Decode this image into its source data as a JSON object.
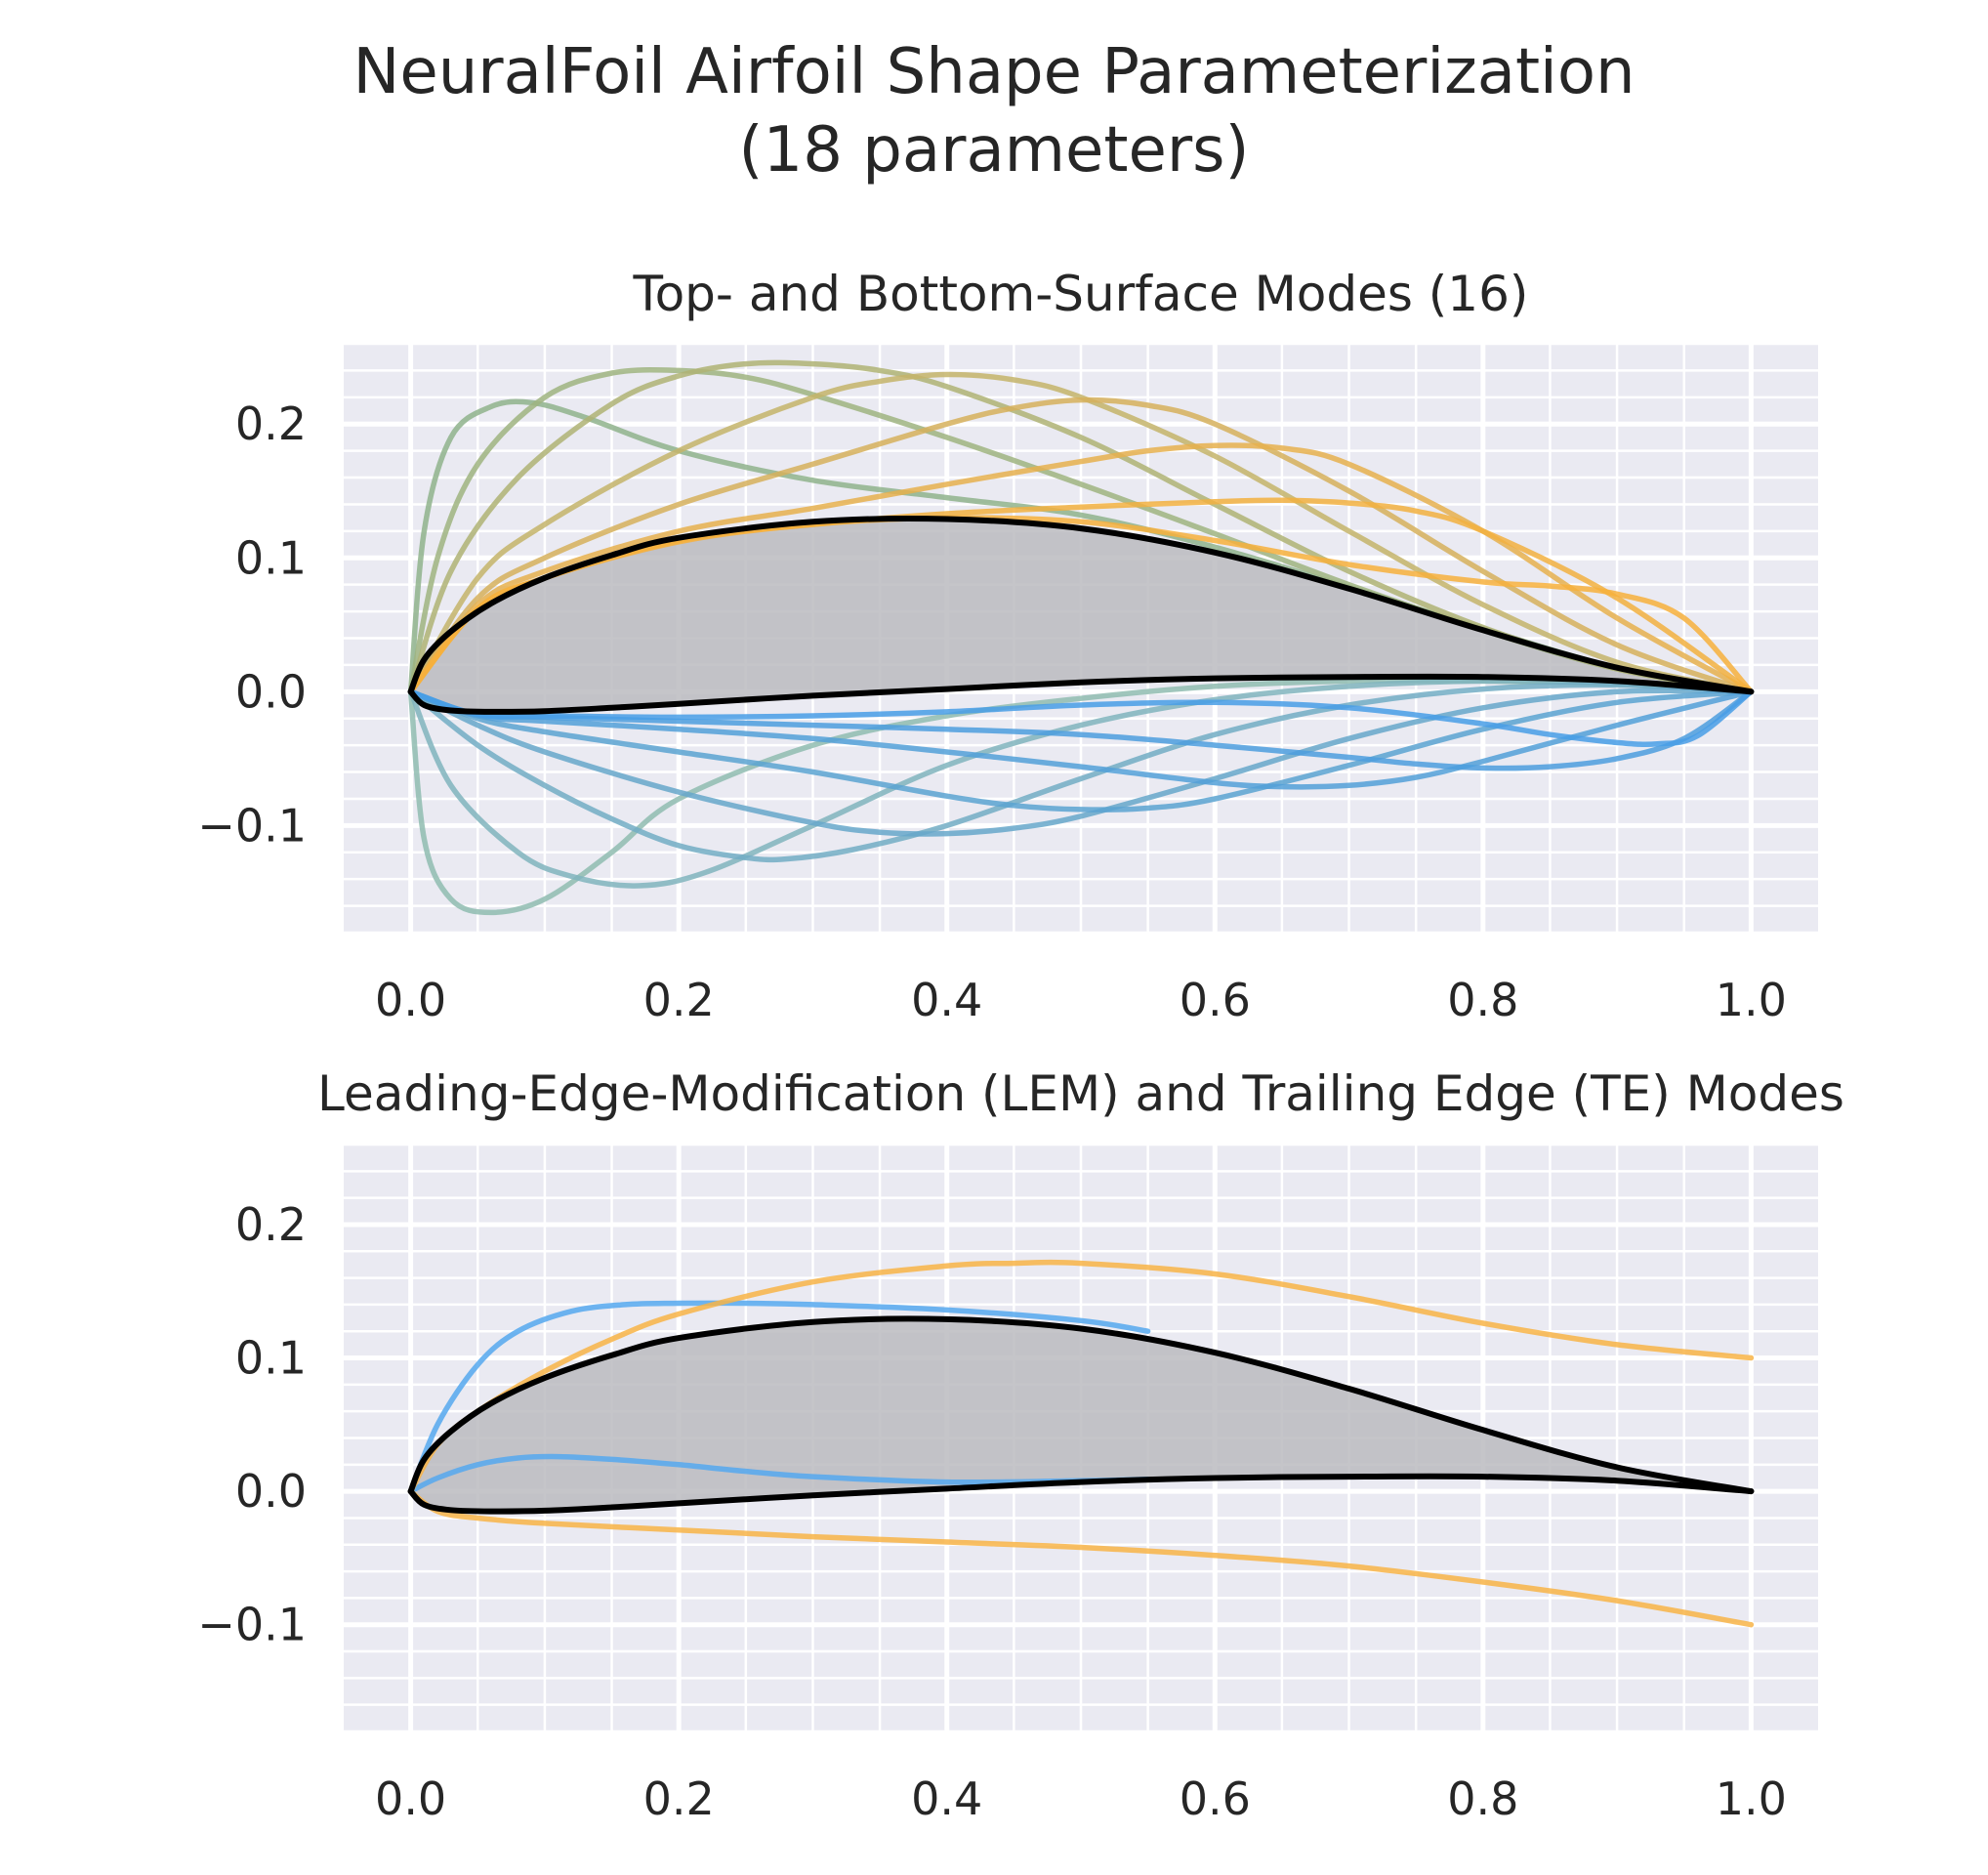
{
  "title_line1": "NeuralFoil Airfoil Shape Parameterization",
  "title_line2": "(18 parameters)",
  "chart_data": [
    {
      "type": "line",
      "title": "Top- and Bottom-Surface Modes (16)",
      "xlim": [
        -0.05,
        1.05
      ],
      "ylim": [
        -0.18,
        0.26
      ],
      "xticks": [
        0.0,
        0.2,
        0.4,
        0.6,
        0.8,
        1.0
      ],
      "xtick_labels": [
        "0.0",
        "0.2",
        "0.4",
        "0.6",
        "0.8",
        "1.0"
      ],
      "yticks": [
        -0.1,
        0.0,
        0.1,
        0.2
      ],
      "ytick_labels": [
        "−0.1",
        "0.0",
        "0.1",
        "0.2"
      ],
      "grid": true,
      "background": "#eaeaf2",
      "baseline_airfoil": {
        "color": "#000000",
        "fill": "#bbbbc0",
        "upper": {
          "x": [
            0,
            0.01,
            0.03,
            0.06,
            0.1,
            0.15,
            0.2,
            0.3,
            0.4,
            0.5,
            0.6,
            0.7,
            0.8,
            0.9,
            1.0
          ],
          "y": [
            0,
            0.024,
            0.045,
            0.066,
            0.085,
            0.102,
            0.115,
            0.127,
            0.129,
            0.122,
            0.104,
            0.077,
            0.046,
            0.018,
            0
          ]
        },
        "lower": {
          "x": [
            0,
            0.01,
            0.03,
            0.06,
            0.1,
            0.15,
            0.2,
            0.3,
            0.4,
            0.5,
            0.6,
            0.7,
            0.8,
            0.9,
            1.0
          ],
          "y": [
            0,
            -0.01,
            -0.014,
            -0.015,
            -0.0145,
            -0.012,
            -0.009,
            -0.003,
            0.002,
            0.007,
            0.01,
            0.011,
            0.011,
            0.008,
            0
          ]
        }
      },
      "series": [
        {
          "color": "#8fb38c",
          "x": [
            0,
            0.01,
            0.03,
            0.06,
            0.09,
            0.13,
            0.2,
            0.3,
            0.4,
            0.5,
            0.6,
            0.7,
            0.8,
            0.9,
            1.0
          ],
          "y": [
            0,
            0.12,
            0.19,
            0.213,
            0.216,
            0.205,
            0.18,
            0.158,
            0.145,
            0.132,
            0.108,
            0.078,
            0.047,
            0.018,
            0
          ]
        },
        {
          "color": "#9fb480",
          "x": [
            0,
            0.02,
            0.05,
            0.1,
            0.15,
            0.2,
            0.25,
            0.3,
            0.4,
            0.5,
            0.6,
            0.7,
            0.8,
            0.9,
            1.0
          ],
          "y": [
            0,
            0.1,
            0.17,
            0.22,
            0.238,
            0.24,
            0.235,
            0.222,
            0.19,
            0.155,
            0.118,
            0.08,
            0.046,
            0.017,
            0
          ]
        },
        {
          "color": "#afb374",
          "x": [
            0,
            0.03,
            0.08,
            0.15,
            0.2,
            0.25,
            0.3,
            0.35,
            0.4,
            0.5,
            0.6,
            0.7,
            0.8,
            0.9,
            1.0
          ],
          "y": [
            0,
            0.09,
            0.16,
            0.215,
            0.236,
            0.245,
            0.245,
            0.24,
            0.228,
            0.19,
            0.14,
            0.09,
            0.048,
            0.017,
            0
          ]
        },
        {
          "color": "#c4b46a",
          "x": [
            0,
            0.05,
            0.1,
            0.2,
            0.3,
            0.35,
            0.4,
            0.45,
            0.5,
            0.6,
            0.7,
            0.8,
            0.9,
            1.0
          ],
          "y": [
            0,
            0.085,
            0.125,
            0.18,
            0.22,
            0.232,
            0.237,
            0.233,
            0.22,
            0.176,
            0.12,
            0.065,
            0.022,
            0
          ]
        },
        {
          "color": "#d6b05c",
          "x": [
            0,
            0.05,
            0.1,
            0.2,
            0.3,
            0.4,
            0.45,
            0.5,
            0.55,
            0.6,
            0.7,
            0.8,
            0.9,
            1.0
          ],
          "y": [
            0,
            0.07,
            0.1,
            0.14,
            0.17,
            0.2,
            0.212,
            0.218,
            0.214,
            0.2,
            0.15,
            0.09,
            0.035,
            0
          ]
        },
        {
          "color": "#e6b04e",
          "x": [
            0,
            0.05,
            0.1,
            0.2,
            0.3,
            0.4,
            0.5,
            0.55,
            0.6,
            0.65,
            0.7,
            0.8,
            0.9,
            1.0
          ],
          "y": [
            0,
            0.065,
            0.09,
            0.12,
            0.137,
            0.155,
            0.172,
            0.18,
            0.184,
            0.182,
            0.17,
            0.12,
            0.055,
            0
          ]
        },
        {
          "color": "#f2b040",
          "x": [
            0,
            0.05,
            0.1,
            0.2,
            0.3,
            0.4,
            0.5,
            0.6,
            0.65,
            0.7,
            0.75,
            0.8,
            0.9,
            1.0
          ],
          "y": [
            0,
            0.062,
            0.085,
            0.113,
            0.125,
            0.133,
            0.138,
            0.142,
            0.143,
            0.141,
            0.135,
            0.12,
            0.07,
            0
          ]
        },
        {
          "color": "#f7b03c",
          "x": [
            0,
            0.05,
            0.1,
            0.2,
            0.3,
            0.4,
            0.5,
            0.6,
            0.7,
            0.8,
            0.85,
            0.9,
            0.95,
            1.0
          ],
          "y": [
            0,
            0.062,
            0.085,
            0.112,
            0.125,
            0.13,
            0.127,
            0.113,
            0.095,
            0.082,
            0.079,
            0.073,
            0.055,
            0
          ]
        },
        {
          "color": "#8fbcb0",
          "x": [
            0,
            0.01,
            0.03,
            0.06,
            0.1,
            0.15,
            0.2,
            0.3,
            0.4,
            0.5,
            0.6,
            0.7,
            0.8,
            0.9,
            1.0
          ],
          "y": [
            0,
            -0.11,
            -0.155,
            -0.165,
            -0.155,
            -0.12,
            -0.08,
            -0.04,
            -0.018,
            -0.005,
            0.004,
            0.008,
            0.008,
            0.006,
            0
          ]
        },
        {
          "color": "#80b4bd",
          "x": [
            0,
            0.03,
            0.08,
            0.12,
            0.17,
            0.22,
            0.3,
            0.4,
            0.5,
            0.6,
            0.7,
            0.8,
            0.9,
            1.0
          ],
          "y": [
            0,
            -0.07,
            -0.12,
            -0.138,
            -0.145,
            -0.135,
            -0.1,
            -0.055,
            -0.025,
            -0.006,
            0.004,
            0.008,
            0.006,
            0
          ]
        },
        {
          "color": "#72adc4",
          "x": [
            0,
            0.05,
            0.1,
            0.15,
            0.2,
            0.25,
            0.28,
            0.33,
            0.4,
            0.5,
            0.6,
            0.7,
            0.8,
            0.9,
            1.0
          ],
          "y": [
            0,
            -0.04,
            -0.07,
            -0.095,
            -0.115,
            -0.124,
            -0.125,
            -0.118,
            -0.1,
            -0.065,
            -0.032,
            -0.01,
            0.002,
            0.005,
            0
          ]
        },
        {
          "color": "#66a7ca",
          "x": [
            0,
            0.05,
            0.1,
            0.2,
            0.3,
            0.35,
            0.4,
            0.45,
            0.5,
            0.6,
            0.7,
            0.8,
            0.9,
            1.0
          ],
          "y": [
            0,
            -0.025,
            -0.045,
            -0.075,
            -0.098,
            -0.105,
            -0.106,
            -0.102,
            -0.093,
            -0.065,
            -0.035,
            -0.012,
            0.0,
            0
          ]
        },
        {
          "color": "#5aa3d1",
          "x": [
            0,
            0.05,
            0.1,
            0.2,
            0.3,
            0.4,
            0.45,
            0.5,
            0.55,
            0.6,
            0.7,
            0.8,
            0.9,
            1.0
          ],
          "y": [
            0,
            -0.02,
            -0.03,
            -0.045,
            -0.06,
            -0.078,
            -0.085,
            -0.088,
            -0.087,
            -0.08,
            -0.055,
            -0.028,
            -0.008,
            0
          ]
        },
        {
          "color": "#52a0d8",
          "x": [
            0,
            0.05,
            0.1,
            0.2,
            0.3,
            0.4,
            0.5,
            0.6,
            0.65,
            0.7,
            0.75,
            0.8,
            0.9,
            1.0
          ],
          "y": [
            0,
            -0.018,
            -0.022,
            -0.028,
            -0.035,
            -0.045,
            -0.056,
            -0.068,
            -0.071,
            -0.07,
            -0.064,
            -0.052,
            -0.025,
            0
          ]
        },
        {
          "color": "#4c9ede",
          "x": [
            0,
            0.05,
            0.1,
            0.2,
            0.3,
            0.4,
            0.5,
            0.6,
            0.7,
            0.75,
            0.8,
            0.85,
            0.9,
            0.95,
            1.0
          ],
          "y": [
            0,
            -0.017,
            -0.019,
            -0.022,
            -0.025,
            -0.028,
            -0.032,
            -0.04,
            -0.049,
            -0.054,
            -0.057,
            -0.056,
            -0.05,
            -0.035,
            0
          ]
        },
        {
          "color": "#489de6",
          "x": [
            0,
            0.05,
            0.1,
            0.2,
            0.3,
            0.4,
            0.5,
            0.6,
            0.7,
            0.8,
            0.85,
            0.9,
            0.93,
            0.96,
            1.0
          ],
          "y": [
            0,
            -0.017,
            -0.018,
            -0.019,
            -0.018,
            -0.015,
            -0.01,
            -0.008,
            -0.012,
            -0.024,
            -0.032,
            -0.038,
            -0.039,
            -0.033,
            0
          ]
        }
      ]
    },
    {
      "type": "line",
      "title": "Leading-Edge-Modification (LEM) and Trailing Edge (TE) Modes",
      "xlim": [
        -0.05,
        1.05
      ],
      "ylim": [
        -0.18,
        0.26
      ],
      "xticks": [
        0.0,
        0.2,
        0.4,
        0.6,
        0.8,
        1.0
      ],
      "xtick_labels": [
        "0.0",
        "0.2",
        "0.4",
        "0.6",
        "0.8",
        "1.0"
      ],
      "yticks": [
        -0.1,
        0.0,
        0.1,
        0.2
      ],
      "ytick_labels": [
        "−0.1",
        "0.0",
        "0.1",
        "0.2"
      ],
      "grid": true,
      "background": "#eaeaf2",
      "baseline_airfoil": {
        "color": "#000000",
        "fill": "#bbbbc0",
        "upper": {
          "x": [
            0,
            0.01,
            0.03,
            0.06,
            0.1,
            0.15,
            0.2,
            0.3,
            0.4,
            0.5,
            0.6,
            0.7,
            0.8,
            0.9,
            1.0
          ],
          "y": [
            0,
            0.024,
            0.045,
            0.066,
            0.085,
            0.102,
            0.115,
            0.127,
            0.129,
            0.122,
            0.104,
            0.077,
            0.046,
            0.018,
            0
          ]
        },
        "lower": {
          "x": [
            0,
            0.01,
            0.03,
            0.06,
            0.1,
            0.15,
            0.2,
            0.3,
            0.4,
            0.5,
            0.6,
            0.7,
            0.8,
            0.9,
            1.0
          ],
          "y": [
            0,
            -0.01,
            -0.014,
            -0.015,
            -0.0145,
            -0.012,
            -0.009,
            -0.003,
            0.002,
            0.007,
            0.01,
            0.011,
            0.011,
            0.008,
            0
          ]
        }
      },
      "series": [
        {
          "color": "#55a8ee",
          "x": [
            0,
            0.02,
            0.05,
            0.08,
            0.12,
            0.16,
            0.2,
            0.25,
            0.3,
            0.4,
            0.5,
            0.55
          ],
          "y": [
            0,
            0.05,
            0.095,
            0.12,
            0.135,
            0.14,
            0.141,
            0.141,
            0.14,
            0.136,
            0.128,
            0.12
          ]
        },
        {
          "color": "#55a8ee",
          "x": [
            0,
            0.02,
            0.05,
            0.08,
            0.11,
            0.15,
            0.2,
            0.25,
            0.3,
            0.4,
            0.5,
            0.55
          ],
          "y": [
            0,
            0.01,
            0.02,
            0.025,
            0.026,
            0.024,
            0.02,
            0.015,
            0.011,
            0.007,
            0.008,
            0.009
          ]
        },
        {
          "color": "#f8b447",
          "x": [
            0,
            0.02,
            0.05,
            0.1,
            0.15,
            0.2,
            0.3,
            0.4,
            0.45,
            0.5,
            0.6,
            0.7,
            0.8,
            0.9,
            1.0
          ],
          "y": [
            0,
            0.035,
            0.06,
            0.09,
            0.114,
            0.133,
            0.157,
            0.169,
            0.171,
            0.171,
            0.163,
            0.146,
            0.126,
            0.11,
            0.1
          ]
        },
        {
          "color": "#f8b447",
          "x": [
            0,
            0.02,
            0.05,
            0.1,
            0.2,
            0.3,
            0.4,
            0.5,
            0.6,
            0.7,
            0.8,
            0.9,
            1.0
          ],
          "y": [
            0,
            -0.015,
            -0.02,
            -0.024,
            -0.029,
            -0.034,
            -0.038,
            -0.042,
            -0.048,
            -0.056,
            -0.068,
            -0.082,
            -0.1
          ]
        }
      ]
    }
  ]
}
